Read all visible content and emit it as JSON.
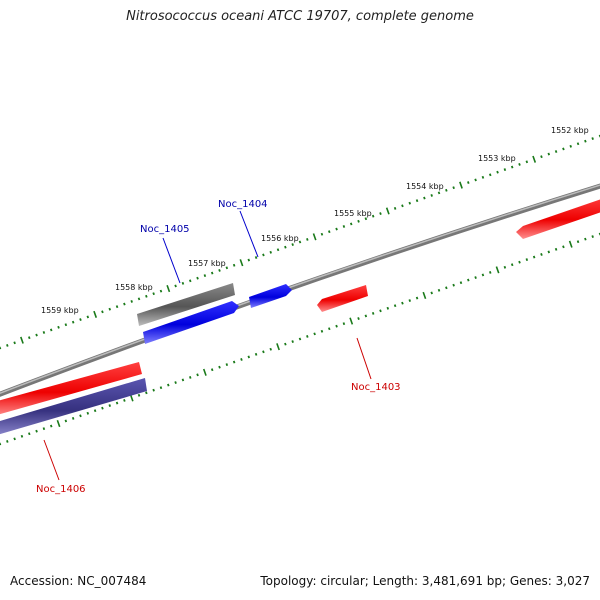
{
  "title": "Nitrosococcus oceani ATCC 19707, complete genome",
  "footer": {
    "accession": "Accession: NC_007484",
    "summary": "Topology: circular; Length: 3,481,691 bp; Genes: 3,027"
  },
  "ruler": {
    "unit_labels": [
      "1552 kbp",
      "1553 kbp",
      "1554 kbp",
      "1555 kbp",
      "1556 kbp",
      "1557 kbp",
      "1558 kbp",
      "1559 kbp"
    ]
  },
  "genes": [
    {
      "id": "Noc_1403",
      "color": "#e00000"
    },
    {
      "id": "Noc_1404",
      "color": "#0000cc"
    },
    {
      "id": "Noc_1405",
      "color": "#0000cc"
    },
    {
      "id": "Noc_1406",
      "color": "#cc0000"
    }
  ],
  "colors": {
    "backbone": "#7a7a7a",
    "tick": "#1a7a1a",
    "forward_gene": "#ee0000",
    "reverse_gene": "#0000ee",
    "dark_gene": "#555555",
    "purple_gene": "#3b3690"
  }
}
